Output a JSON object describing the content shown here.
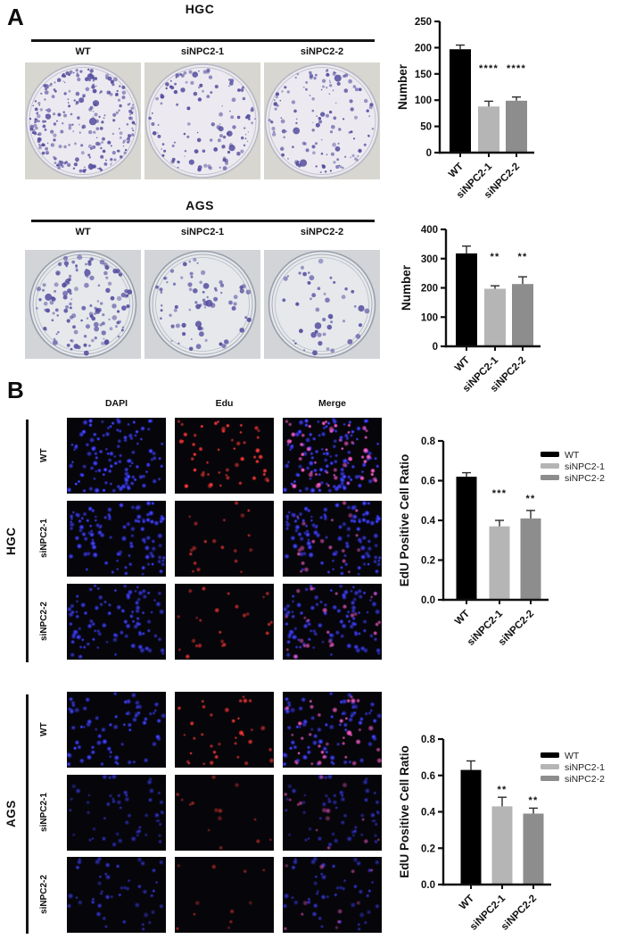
{
  "panel_a": {
    "label": "A",
    "sections": [
      {
        "cell_line": "HGC",
        "conditions": [
          "WT",
          "siNPC2-1",
          "siNPC2-2"
        ]
      },
      {
        "cell_line": "AGS",
        "conditions": [
          "WT",
          "siNPC2-1",
          "siNPC2-2"
        ]
      }
    ]
  },
  "panel_b": {
    "label": "B",
    "channels": [
      "DAPI",
      "Edu",
      "Merge"
    ],
    "groups": [
      {
        "cell_line": "HGC",
        "rows": [
          "WT",
          "siNPC2-1",
          "siNPC2-2"
        ]
      },
      {
        "cell_line": "AGS",
        "rows": [
          "WT",
          "siNPC2-1",
          "siNPC2-2"
        ]
      }
    ]
  },
  "colors": {
    "bar_wt": "#000000",
    "bar_si1": "#b5b5b5",
    "bar_si2": "#8d8d8d",
    "axis": "#111111",
    "colony_stain": "#544c9f",
    "dapi_blue": "#2b2be2",
    "edu_red": "#cf2626",
    "merge_pink": "#d846ae"
  },
  "chart_data": [
    {
      "id": "colony-hgc",
      "type": "bar",
      "group": "HGC",
      "categories": [
        "WT",
        "siNPC2-1",
        "siNPC2-2"
      ],
      "values": [
        197,
        88,
        99
      ],
      "errors": [
        8,
        10,
        7
      ],
      "significance": [
        "",
        "****",
        "****"
      ],
      "ylabel": "Number",
      "xlabel": "",
      "ylim": [
        0,
        250
      ],
      "yticks": [
        0,
        50,
        100,
        150,
        200,
        250
      ],
      "legend": null,
      "grid": false
    },
    {
      "id": "colony-ags",
      "type": "bar",
      "group": "AGS",
      "categories": [
        "WT",
        "siNPC2-1",
        "siNPC2-2"
      ],
      "values": [
        318,
        197,
        213
      ],
      "errors": [
        25,
        10,
        25
      ],
      "significance": [
        "",
        "**",
        "**"
      ],
      "ylabel": "Number",
      "xlabel": "",
      "ylim": [
        0,
        400
      ],
      "yticks": [
        0,
        100,
        200,
        300,
        400
      ],
      "legend": null,
      "grid": false
    },
    {
      "id": "edu-hgc",
      "type": "bar",
      "group": "HGC",
      "categories": [
        "WT",
        "siNPC2-1",
        "siNPC2-2"
      ],
      "values": [
        0.62,
        0.37,
        0.41
      ],
      "errors": [
        0.02,
        0.03,
        0.04
      ],
      "significance": [
        "",
        "***",
        "**"
      ],
      "ylabel": "EdU Positive Cell Ratio",
      "xlabel": "",
      "ylim": [
        0,
        0.8
      ],
      "yticks": [
        0,
        0.2,
        0.4,
        0.6,
        0.8
      ],
      "legend": [
        "WT",
        "siNPC2-1",
        "siNPC2-2"
      ],
      "legend_position": "right",
      "grid": false
    },
    {
      "id": "edu-ags",
      "type": "bar",
      "group": "AGS",
      "categories": [
        "WT",
        "siNPC2-1",
        "siNPC2-2"
      ],
      "values": [
        0.63,
        0.43,
        0.39
      ],
      "errors": [
        0.05,
        0.05,
        0.03
      ],
      "significance": [
        "",
        "**",
        "**"
      ],
      "ylabel": "EdU Positive Cell Ratio",
      "xlabel": "",
      "ylim": [
        0,
        0.8
      ],
      "yticks": [
        0,
        0.2,
        0.4,
        0.6,
        0.8
      ],
      "legend": [
        "WT",
        "siNPC2-1",
        "siNPC2-2"
      ],
      "legend_position": "right",
      "grid": false
    }
  ]
}
